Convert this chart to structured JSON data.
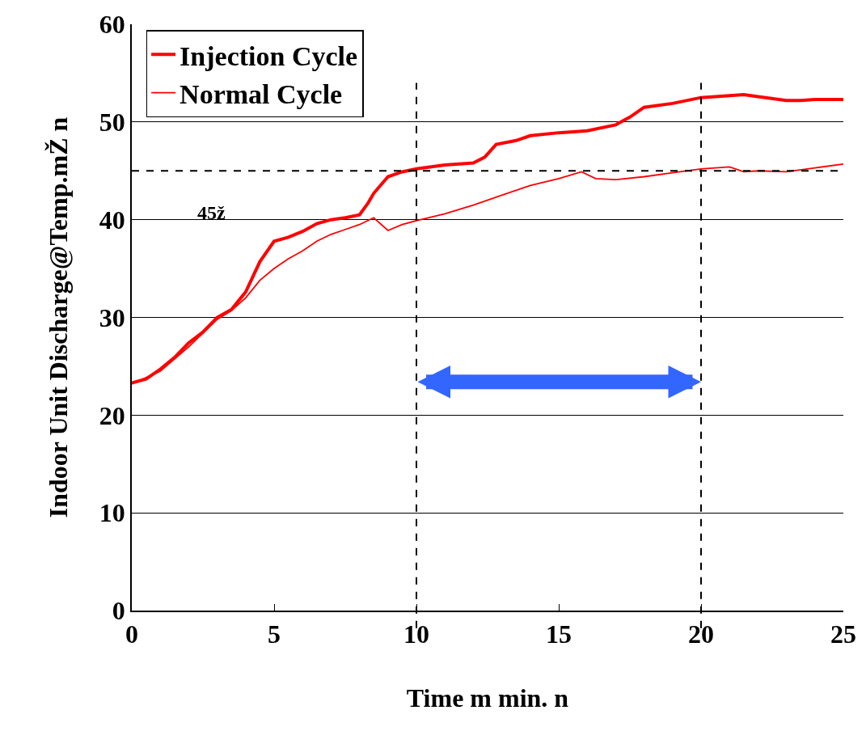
{
  "chart_data": {
    "type": "line",
    "xlabel": "Time m min. n",
    "ylabel": "Indoor Unit Discharge@Temp.mŽ n",
    "xlim": [
      0,
      25
    ],
    "xticks": [
      0,
      5,
      10,
      15,
      20,
      25
    ],
    "ylim": [
      0,
      60
    ],
    "yticks": [
      0,
      10,
      20,
      30,
      40,
      50,
      60
    ],
    "grid": "y",
    "legend": "top left",
    "line_style": "solid",
    "marker": "none",
    "series": [
      {
        "name": "Injection Cycle",
        "color": "#ff0000",
        "x": [
          0,
          0.5,
          1,
          1.5,
          2,
          2.5,
          3,
          3.5,
          4,
          4.5,
          5,
          5.5,
          6,
          6.5,
          7,
          7.5,
          8,
          8.3,
          8.5,
          9,
          9.5,
          10,
          11,
          12,
          12.4,
          12.8,
          13.5,
          14,
          15,
          16,
          17,
          17.5,
          18,
          19,
          20,
          21,
          21.5,
          22,
          23,
          23.5,
          24,
          25
        ],
        "values": [
          23.3,
          23.7,
          24.7,
          25.9,
          27.4,
          28.5,
          30.0,
          30.8,
          32.6,
          35.7,
          37.8,
          38.2,
          38.8,
          39.6,
          40.0,
          40.2,
          40.5,
          41.7,
          42.7,
          44.4,
          44.9,
          45.2,
          45.6,
          45.8,
          46.4,
          47.7,
          48.1,
          48.6,
          48.9,
          49.1,
          49.7,
          50.5,
          51.5,
          51.9,
          52.5,
          52.7,
          52.8,
          52.6,
          52.2,
          52.2,
          52.3,
          52.3
        ]
      },
      {
        "name": "Normal Cycle",
        "color": "#ff0000",
        "x": [
          0,
          1,
          2,
          3,
          3.5,
          4,
          4.5,
          5,
          5.5,
          6,
          6.5,
          7,
          7.5,
          8,
          8.5,
          9,
          9.5,
          10,
          11,
          12,
          13,
          14,
          15,
          15.8,
          16.3,
          17,
          18,
          19,
          20,
          21,
          21.5,
          22,
          23,
          24,
          25
        ],
        "values": [
          23.2,
          24.5,
          27.0,
          29.8,
          30.7,
          32.0,
          33.8,
          35.0,
          36.0,
          36.8,
          37.8,
          38.5,
          39.0,
          39.5,
          40.2,
          38.9,
          39.5,
          39.9,
          40.6,
          41.5,
          42.5,
          43.5,
          44.2,
          44.9,
          44.2,
          44.1,
          44.4,
          44.8,
          45.2,
          45.4,
          44.9,
          45.0,
          44.9,
          45.3,
          45.7
        ]
      }
    ],
    "ref_lines": [
      {
        "axis": "y",
        "value": 45,
        "line_style": "dashed",
        "color": "#000000"
      },
      {
        "axis": "x",
        "value": 10,
        "line_style": "dashed",
        "color": "#000000"
      },
      {
        "axis": "x",
        "value": 20,
        "line_style": "dashed",
        "color": "#000000"
      }
    ],
    "annotations": [
      "45ž"
    ]
  }
}
